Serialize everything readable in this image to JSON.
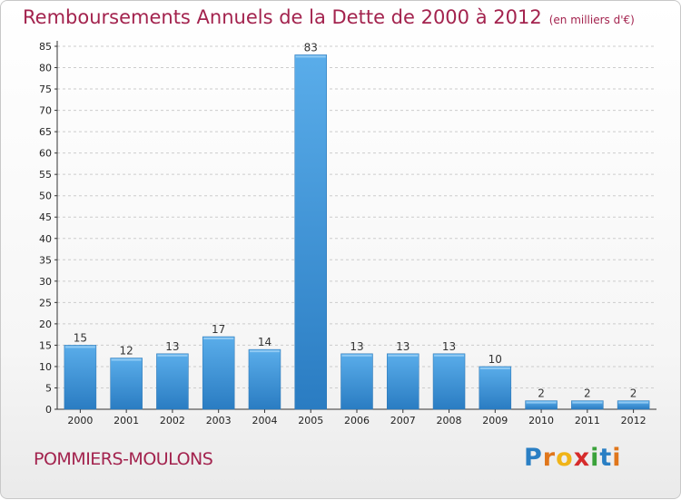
{
  "title": "Remboursements Annuels de la Dette de 2000 à 2012",
  "unit": "(en milliers d'€)",
  "commune": "POMMIERS-MOULONS",
  "logo": {
    "letters": [
      "P",
      "r",
      "o",
      "x",
      "i",
      "t",
      "i"
    ],
    "colors": [
      "#2a7fc4",
      "#e0761b",
      "#f0b418",
      "#d62b2b",
      "#3aa23a",
      "#2a7fc4",
      "#e0761b"
    ]
  },
  "colors": {
    "bar": "#3d93d6",
    "bar_light": "#5aadea",
    "title": "#a3234e"
  },
  "chart_data": {
    "type": "bar",
    "categories": [
      "2000",
      "2001",
      "2002",
      "2003",
      "2004",
      "2005",
      "2006",
      "2007",
      "2008",
      "2009",
      "2010",
      "2011",
      "2012"
    ],
    "values": [
      15,
      12,
      13,
      17,
      14,
      83,
      13,
      13,
      13,
      10,
      2,
      2,
      2
    ],
    "yticks": [
      0,
      5,
      10,
      15,
      20,
      25,
      30,
      35,
      40,
      45,
      50,
      55,
      60,
      65,
      70,
      75,
      80,
      85
    ],
    "ylim": [
      0,
      85
    ],
    "grid": true,
    "legend": "none"
  }
}
